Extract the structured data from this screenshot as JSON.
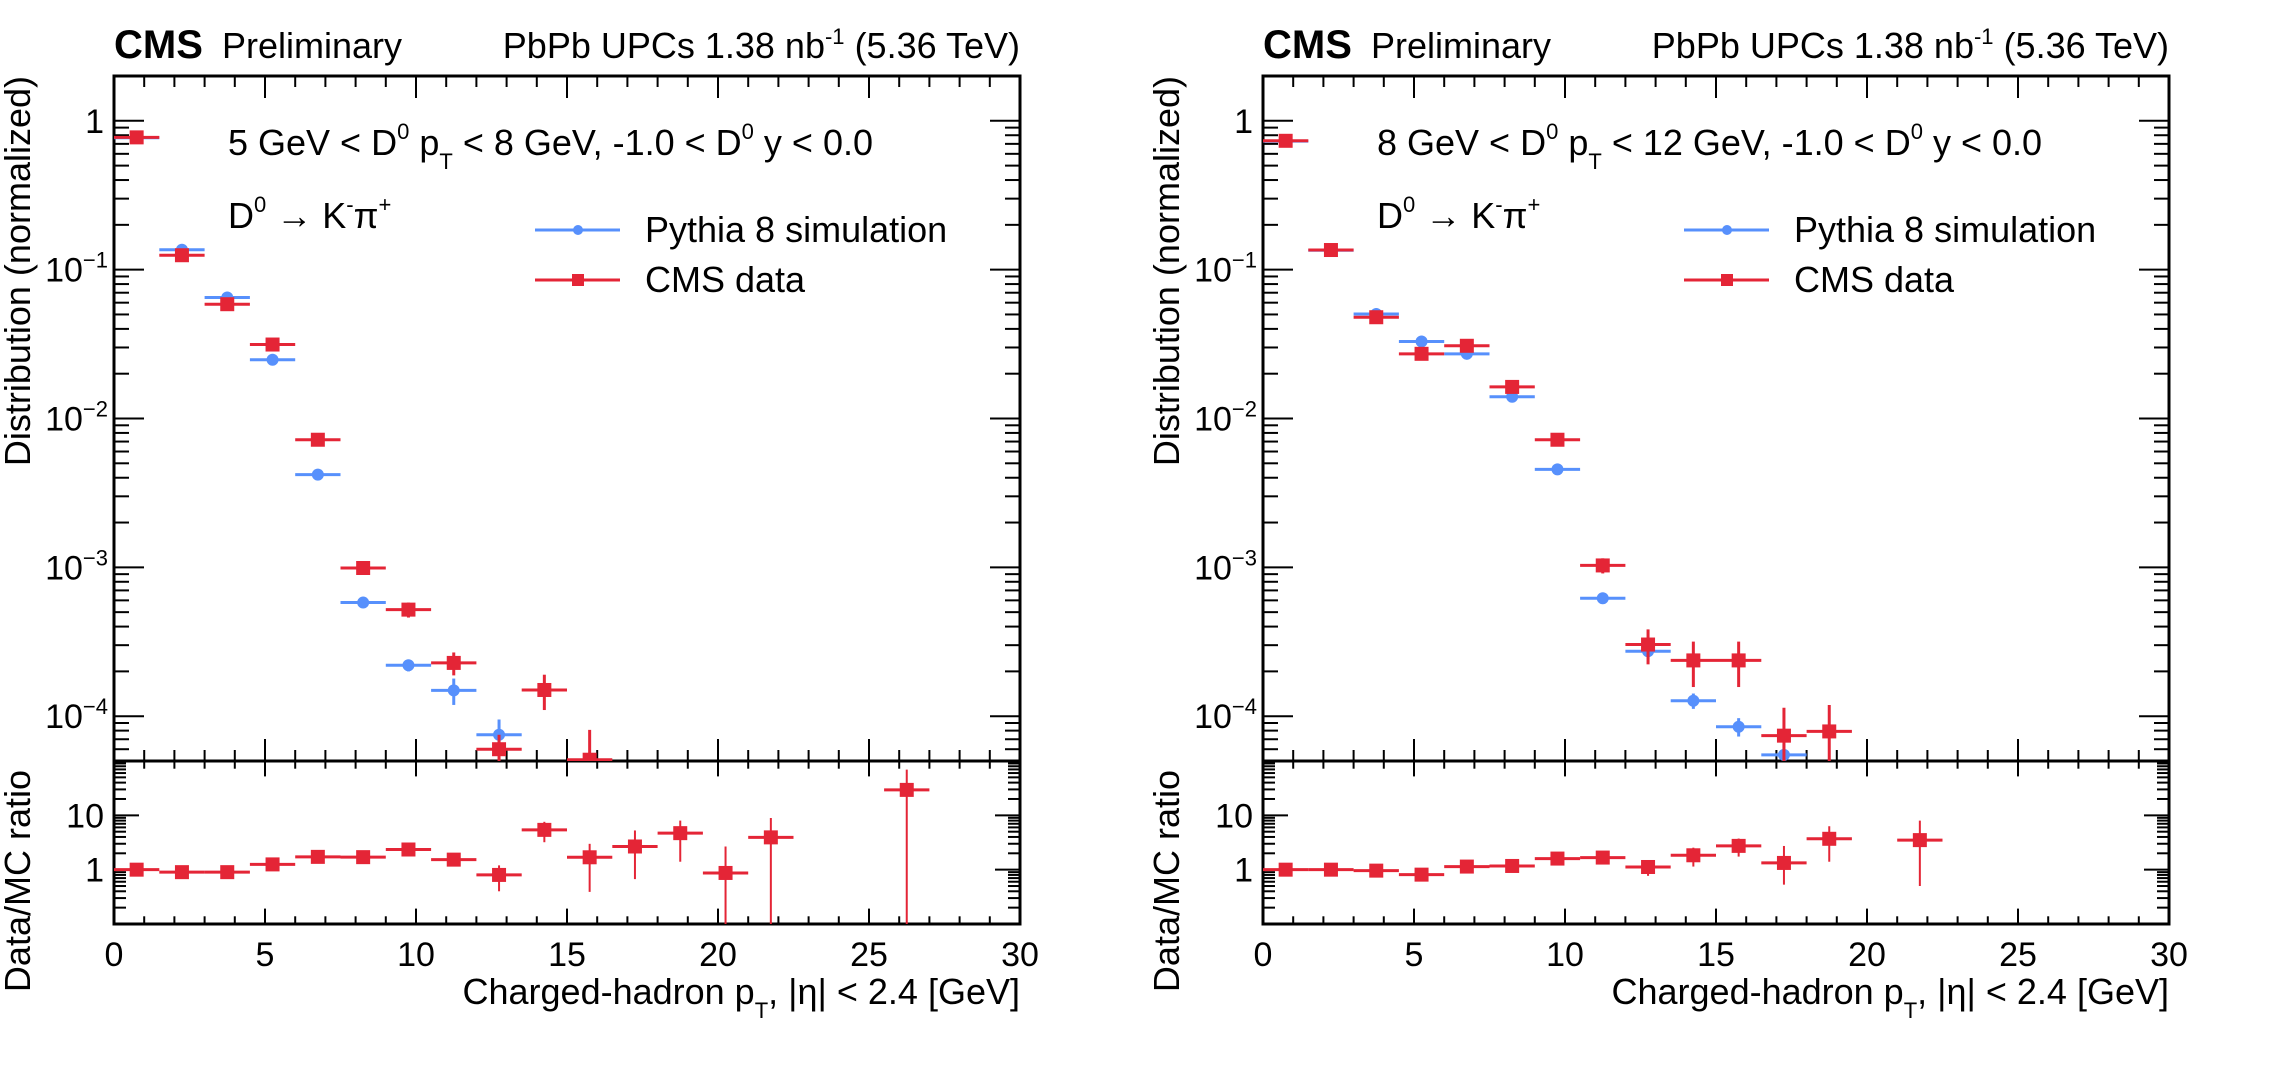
{
  "colors": {
    "mc": "#5790fc",
    "data": "#e42536",
    "axis": "#000000"
  },
  "chart_data": [
    {
      "type": "scatter",
      "panel": "left",
      "header_left_bold": "CMS",
      "header_left": "Preliminary",
      "header_right": "PbPb UPCs 1.38 nb",
      "header_right_sup": "-1",
      "header_right_tail": "(5.36 TeV)",
      "selection_text": "5 GeV < D⁰ p_T < 8 GeV, -1.0 < D⁰ y < 0.0",
      "selection_parts": {
        "a": "5 GeV < D",
        "sup1": "0",
        "b": " p",
        "sub": "T",
        "c": " < 8 GeV, -1.0 < D",
        "sup2": "0",
        "d": " y < 0.0"
      },
      "decay_text": {
        "a": "D",
        "sup1": "0",
        "arrow": " → K",
        "sup2": "-",
        "b": "π",
        "sup3": "+"
      },
      "legend": [
        {
          "name": "Pythia 8 simulation",
          "marker": "circle",
          "color_key": "mc"
        },
        {
          "name": "CMS data",
          "marker": "square",
          "color_key": "data"
        }
      ],
      "legend_position": "upper-right",
      "xlabel": "Charged-hadron p_T, |η| < 2.4 [GeV]",
      "xlabel_parts": {
        "a": "Charged-hadron p",
        "sub": "T",
        "b": ", |η| < 2.4 [GeV]"
      },
      "ylabel": "Distribution (normalized)",
      "ratio_ylabel": "Data/MC ratio",
      "xlim": [
        0,
        30
      ],
      "ylim": [
        5e-05,
        2
      ],
      "yscale": "log",
      "ratio_ylim": [
        0.1,
        100
      ],
      "ratio_yscale": "log",
      "x_ticks": [
        "0",
        "5",
        "10",
        "15",
        "20",
        "25",
        "30"
      ],
      "y_ticks": [
        {
          "value": 1,
          "base": "1",
          "exp": ""
        },
        {
          "value": 0.1,
          "base": "10",
          "exp": "−1"
        },
        {
          "value": 0.01,
          "base": "10",
          "exp": "−2"
        },
        {
          "value": 0.001,
          "base": "10",
          "exp": "−3"
        },
        {
          "value": 0.0001,
          "base": "10",
          "exp": "−4"
        }
      ],
      "ratio_y_ticks": [
        "10",
        "1"
      ],
      "bin_width": 1.5,
      "series": [
        {
          "name": "Pythia 8 simulation",
          "x": [
            0.75,
            2.25,
            3.75,
            5.25,
            6.75,
            8.25,
            9.75,
            11.25,
            12.75
          ],
          "y": [
            0.77,
            0.136,
            0.065,
            0.0248,
            0.0042,
            0.00058,
            0.00022,
            0.000149,
            7.5e-05
          ],
          "yerr": [
            0,
            0,
            0,
            0,
            0,
            2e-05,
            2e-05,
            3e-05,
            2e-05
          ]
        },
        {
          "name": "CMS data",
          "x": [
            0.75,
            2.25,
            3.75,
            5.25,
            6.75,
            8.25,
            9.75,
            11.25,
            12.75,
            14.25,
            15.75
          ],
          "y": [
            0.774,
            0.125,
            0.0586,
            0.0314,
            0.0072,
            0.00099,
            0.00052,
            0.000228,
            6e-05,
            0.00015,
            5.1e-05
          ],
          "yerr": [
            0.005,
            0.002,
            0.001,
            0.0008,
            0.0002,
            8e-05,
            6e-05,
            4e-05,
            1.5e-05,
            4e-05,
            3e-05
          ]
        }
      ],
      "ratio": {
        "name": "Data/MC",
        "x": [
          0.75,
          2.25,
          3.75,
          5.25,
          6.75,
          8.25,
          9.75,
          11.25,
          12.75,
          14.25,
          15.75,
          17.25,
          18.75,
          20.25,
          21.75,
          26.25
        ],
        "y": [
          1.0,
          0.9,
          0.9,
          1.25,
          1.72,
          1.7,
          2.35,
          1.53,
          0.8,
          5.4,
          1.69,
          2.67,
          4.7,
          0.87,
          3.93,
          29.4
        ],
        "yerr_up": [
          0.08,
          0.06,
          0.06,
          0.1,
          0.15,
          0.15,
          0.3,
          0.3,
          0.4,
          2.2,
          1.3,
          2.6,
          3.3,
          1.8,
          5.0,
          40
        ],
        "yerr_down": [
          0.08,
          0.06,
          0.06,
          0.1,
          0.15,
          0.15,
          0.3,
          0.3,
          0.4,
          2.2,
          1.3,
          2.0,
          3.3,
          0.87,
          3.93,
          29.4
        ]
      }
    },
    {
      "type": "scatter",
      "panel": "right",
      "header_left_bold": "CMS",
      "header_left": "Preliminary",
      "header_right": "PbPb UPCs 1.38 nb",
      "header_right_sup": "-1",
      "header_right_tail": "(5.36 TeV)",
      "selection_text": "8 GeV < D⁰ p_T < 12 GeV, -1.0 < D⁰ y < 0.0",
      "selection_parts": {
        "a": "8 GeV < D",
        "sup1": "0",
        "b": " p",
        "sub": "T",
        "c": " < 12 GeV, -1.0 < D",
        "sup2": "0",
        "d": " y < 0.0"
      },
      "decay_text": {
        "a": "D",
        "sup1": "0",
        "arrow": " → K",
        "sup2": "-",
        "b": "π",
        "sup3": "+"
      },
      "legend": [
        {
          "name": "Pythia 8 simulation",
          "marker": "circle",
          "color_key": "mc"
        },
        {
          "name": "CMS data",
          "marker": "square",
          "color_key": "data"
        }
      ],
      "legend_position": "upper-right",
      "xlabel": "Charged-hadron p_T, |η| < 2.4 [GeV]",
      "xlabel_parts": {
        "a": "Charged-hadron p",
        "sub": "T",
        "b": ", |η| < 2.4 [GeV]"
      },
      "ylabel": "Distribution (normalized)",
      "ratio_ylabel": "Data/MC ratio",
      "xlim": [
        0,
        30
      ],
      "ylim": [
        5e-05,
        2
      ],
      "yscale": "log",
      "ratio_ylim": [
        0.1,
        100
      ],
      "ratio_yscale": "log",
      "x_ticks": [
        "0",
        "5",
        "10",
        "15",
        "20",
        "25",
        "30"
      ],
      "y_ticks": [
        {
          "value": 1,
          "base": "1",
          "exp": ""
        },
        {
          "value": 0.1,
          "base": "10",
          "exp": "−1"
        },
        {
          "value": 0.01,
          "base": "10",
          "exp": "−2"
        },
        {
          "value": 0.001,
          "base": "10",
          "exp": "−3"
        },
        {
          "value": 0.0001,
          "base": "10",
          "exp": "−4"
        }
      ],
      "ratio_y_ticks": [
        "10",
        "1"
      ],
      "bin_width": 1.5,
      "series": [
        {
          "name": "Pythia 8 simulation",
          "x": [
            0.75,
            2.25,
            3.75,
            5.25,
            6.75,
            8.25,
            9.75,
            11.25,
            12.75,
            14.25,
            15.75,
            17.25
          ],
          "y": [
            0.73,
            0.135,
            0.0504,
            0.0329,
            0.0272,
            0.014,
            0.00455,
            0.00062,
            0.000273,
            0.000127,
            8.5e-05,
            5.5e-05
          ],
          "yerr": [
            0,
            0,
            0,
            0,
            0,
            0,
            0,
            3e-05,
            3e-05,
            1.5e-05,
            1.2e-05,
            1e-05
          ]
        },
        {
          "name": "CMS data",
          "x": [
            0.75,
            2.25,
            3.75,
            5.25,
            6.75,
            8.25,
            9.75,
            11.25,
            12.75,
            14.25,
            15.75,
            17.25,
            18.75
          ],
          "y": [
            0.734,
            0.1355,
            0.0479,
            0.0272,
            0.0308,
            0.0163,
            0.0072,
            0.00103,
            0.000303,
            0.000237,
            0.000237,
            7.4e-05,
            7.9e-05
          ],
          "yerr": [
            0.005,
            0.002,
            0.0008,
            0.0005,
            0.0006,
            0.0004,
            0.0002,
            0.00012,
            8e-05,
            8e-05,
            8e-05,
            4e-05,
            4e-05
          ]
        }
      ],
      "ratio": {
        "name": "Data/MC",
        "x": [
          0.75,
          2.25,
          3.75,
          5.25,
          6.75,
          8.25,
          9.75,
          11.25,
          12.75,
          14.25,
          15.75,
          17.25,
          18.75,
          21.75
        ],
        "y": [
          1.0,
          1.0,
          0.96,
          0.81,
          1.14,
          1.17,
          1.6,
          1.67,
          1.12,
          1.84,
          2.74,
          1.33,
          3.7,
          3.5
        ],
        "yerr_up": [
          0.05,
          0.05,
          0.05,
          0.05,
          0.08,
          0.08,
          0.15,
          0.25,
          0.35,
          0.7,
          1.0,
          1.4,
          2.6,
          4.5
        ],
        "yerr_down": [
          0.05,
          0.05,
          0.05,
          0.05,
          0.08,
          0.08,
          0.15,
          0.25,
          0.35,
          0.7,
          1.0,
          0.8,
          2.3,
          3.0
        ]
      }
    }
  ]
}
